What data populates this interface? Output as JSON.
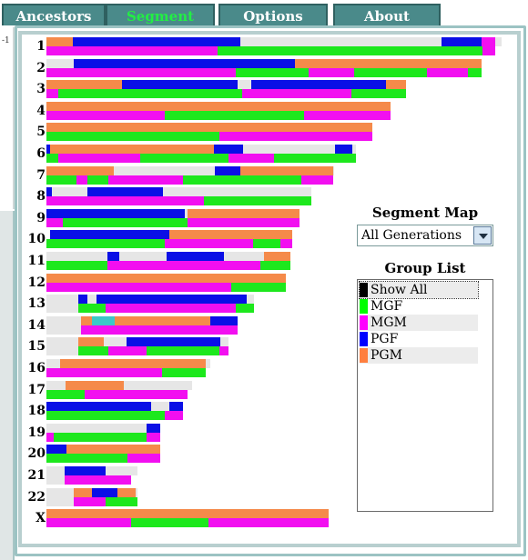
{
  "tabs": [
    {
      "label": "Ancestors"
    },
    {
      "label": "Segment Map"
    },
    {
      "label": "Options"
    },
    {
      "label": "About"
    }
  ],
  "left_strip_text": "-1",
  "chromosomes": [
    {
      "label": "1",
      "paternal": [
        [
          "gray",
          0.0,
          1.0
        ],
        [
          "orange",
          0.0,
          0.057
        ],
        [
          "blue",
          0.057,
          0.425
        ],
        [
          "blue",
          0.867,
          0.956
        ],
        [
          "magenta",
          0.956,
          0.985
        ]
      ],
      "maternal": [
        [
          "magenta",
          0.0,
          0.375
        ],
        [
          "green",
          0.375,
          0.958
        ],
        [
          "magenta",
          0.958,
          0.985
        ]
      ]
    },
    {
      "label": "2",
      "paternal": [
        [
          "gray",
          0.0,
          0.06
        ],
        [
          "blue",
          0.06,
          0.545
        ],
        [
          "orange",
          0.545,
          0.955
        ]
      ],
      "maternal": [
        [
          "magenta",
          0.0,
          0.415
        ],
        [
          "green",
          0.415,
          0.575
        ],
        [
          "magenta",
          0.575,
          0.675
        ],
        [
          "green",
          0.675,
          0.835
        ],
        [
          "magenta",
          0.835,
          0.925
        ],
        [
          "green",
          0.925,
          0.955
        ]
      ]
    },
    {
      "label": "3",
      "paternal": [
        [
          "orange",
          0.0,
          0.165
        ],
        [
          "blue",
          0.165,
          0.42
        ],
        [
          "gray",
          0.42,
          0.45
        ],
        [
          "blue",
          0.45,
          0.746
        ],
        [
          "orange",
          0.746,
          0.79
        ]
      ],
      "maternal": [
        [
          "magenta",
          0.0,
          0.025
        ],
        [
          "green",
          0.025,
          0.43
        ],
        [
          "magenta",
          0.43,
          0.67
        ],
        [
          "green",
          0.67,
          0.79
        ]
      ]
    },
    {
      "label": "4",
      "paternal": [
        [
          "orange",
          0.0,
          0.755
        ]
      ],
      "maternal": [
        [
          "magenta",
          0.0,
          0.26
        ],
        [
          "green",
          0.26,
          0.565
        ],
        [
          "magenta",
          0.565,
          0.755
        ]
      ]
    },
    {
      "label": "5",
      "paternal": [
        [
          "orange",
          0.0,
          0.715
        ]
      ],
      "maternal": [
        [
          "green",
          0.0,
          0.38
        ],
        [
          "magenta",
          0.38,
          0.715
        ]
      ]
    },
    {
      "label": "6",
      "paternal": [
        [
          "blue",
          0.0,
          0.008
        ],
        [
          "orange",
          0.008,
          0.367
        ],
        [
          "blue",
          0.367,
          0.432
        ],
        [
          "gray",
          0.432,
          0.633
        ],
        [
          "blue",
          0.633,
          0.672
        ],
        [
          "gray",
          0.672,
          0.68
        ]
      ],
      "maternal": [
        [
          "green",
          0.0,
          0.025
        ],
        [
          "magenta",
          0.025,
          0.205
        ],
        [
          "green",
          0.205,
          0.4
        ],
        [
          "magenta",
          0.4,
          0.5
        ],
        [
          "green",
          0.5,
          0.68
        ]
      ]
    },
    {
      "label": "7",
      "paternal": [
        [
          "orange",
          0.0,
          0.148
        ],
        [
          "gray",
          0.148,
          0.37
        ],
        [
          "blue",
          0.37,
          0.426
        ],
        [
          "orange",
          0.426,
          0.63
        ],
        [
          "gray",
          0.63,
          0.63
        ]
      ],
      "maternal": [
        [
          "green",
          0.0,
          0.065
        ],
        [
          "magenta",
          0.065,
          0.09
        ],
        [
          "green",
          0.09,
          0.135
        ],
        [
          "magenta",
          0.135,
          0.3
        ],
        [
          "green",
          0.3,
          0.56
        ],
        [
          "magenta",
          0.56,
          0.63
        ]
      ]
    },
    {
      "label": "8",
      "paternal": [
        [
          "blue",
          0.0,
          0.012
        ],
        [
          "gray",
          0.012,
          0.09
        ],
        [
          "blue",
          0.09,
          0.256
        ],
        [
          "gray",
          0.256,
          0.582
        ]
      ],
      "maternal": [
        [
          "magenta",
          0.0,
          0.345
        ],
        [
          "green",
          0.345,
          0.582
        ]
      ]
    },
    {
      "label": "9",
      "paternal": [
        [
          "blue",
          0.0,
          0.304
        ],
        [
          "gray",
          0.304,
          0.31
        ],
        [
          "orange",
          0.31,
          0.555
        ]
      ],
      "maternal": [
        [
          "magenta",
          0.0,
          0.035
        ],
        [
          "green",
          0.035,
          0.31
        ],
        [
          "magenta",
          0.31,
          0.555
        ]
      ]
    },
    {
      "label": "10",
      "paternal": [
        [
          "blue",
          0.008,
          0.27
        ],
        [
          "orange",
          0.27,
          0.54
        ]
      ],
      "maternal": [
        [
          "green",
          0.0,
          0.26
        ],
        [
          "magenta",
          0.26,
          0.454
        ],
        [
          "green",
          0.454,
          0.514
        ],
        [
          "magenta",
          0.514,
          0.54
        ]
      ]
    },
    {
      "label": "11",
      "paternal": [
        [
          "gray",
          0.0,
          0.134
        ],
        [
          "blue",
          0.134,
          0.159
        ],
        [
          "gray",
          0.159,
          0.263
        ],
        [
          "blue",
          0.263,
          0.39
        ],
        [
          "gray",
          0.39,
          0.478
        ],
        [
          "orange",
          0.478,
          0.535
        ]
      ],
      "maternal": [
        [
          "green",
          0.0,
          0.134
        ],
        [
          "magenta",
          0.134,
          0.47
        ],
        [
          "green",
          0.47,
          0.535
        ]
      ]
    },
    {
      "label": "12",
      "paternal": [
        [
          "orange",
          0.0,
          0.525
        ]
      ],
      "maternal": [
        [
          "magenta",
          0.0,
          0.405
        ],
        [
          "green",
          0.405,
          0.525
        ]
      ]
    },
    {
      "label": "13",
      "paternal": [
        [
          "gray",
          0.0,
          0.07
        ],
        [
          "blue",
          0.07,
          0.09
        ],
        [
          "gray",
          0.09,
          0.11
        ],
        [
          "blue",
          0.11,
          0.44
        ],
        [
          "gray",
          0.44,
          0.455
        ]
      ],
      "maternal": [
        [
          "gray",
          0.0,
          0.07
        ],
        [
          "green",
          0.07,
          0.13
        ],
        [
          "magenta",
          0.13,
          0.415
        ],
        [
          "green",
          0.415,
          0.455
        ]
      ]
    },
    {
      "label": "14",
      "paternal": [
        [
          "gray",
          0.0,
          0.075
        ],
        [
          "orange",
          0.075,
          0.1
        ],
        [
          "cyan",
          0.1,
          0.15
        ],
        [
          "orange",
          0.15,
          0.36
        ],
        [
          "blue",
          0.36,
          0.42
        ]
      ],
      "maternal": [
        [
          "gray",
          0.0,
          0.075
        ],
        [
          "magenta",
          0.075,
          0.42
        ]
      ]
    },
    {
      "label": "15",
      "paternal": [
        [
          "gray",
          0.0,
          0.07
        ],
        [
          "orange",
          0.07,
          0.125
        ],
        [
          "gray",
          0.125,
          0.175
        ],
        [
          "blue",
          0.175,
          0.382
        ],
        [
          "gray",
          0.382,
          0.4
        ]
      ],
      "maternal": [
        [
          "gray",
          0.0,
          0.07
        ],
        [
          "green",
          0.07,
          0.135
        ],
        [
          "magenta",
          0.135,
          0.22
        ],
        [
          "green",
          0.22,
          0.38
        ],
        [
          "magenta",
          0.38,
          0.4
        ]
      ]
    },
    {
      "label": "16",
      "paternal": [
        [
          "gray",
          0.0,
          0.03
        ],
        [
          "orange",
          0.03,
          0.35
        ],
        [
          "gray",
          0.35,
          0.36
        ]
      ],
      "maternal": [
        [
          "magenta",
          0.0,
          0.253
        ],
        [
          "green",
          0.253,
          0.35
        ]
      ]
    },
    {
      "label": "17",
      "paternal": [
        [
          "gray",
          0.0,
          0.042
        ],
        [
          "orange",
          0.042,
          0.17
        ],
        [
          "gray",
          0.17,
          0.32
        ]
      ],
      "maternal": [
        [
          "green",
          0.0,
          0.083
        ],
        [
          "magenta",
          0.083,
          0.31
        ]
      ]
    },
    {
      "label": "18",
      "paternal": [
        [
          "blue",
          0.0,
          0.23
        ],
        [
          "gray",
          0.23,
          0.27
        ],
        [
          "blue",
          0.27,
          0.3
        ]
      ],
      "maternal": [
        [
          "green",
          0.0,
          0.26
        ],
        [
          "magenta",
          0.26,
          0.3
        ]
      ]
    },
    {
      "label": "19",
      "paternal": [
        [
          "gray",
          0.0,
          0.22
        ],
        [
          "blue",
          0.22,
          0.25
        ]
      ],
      "maternal": [
        [
          "magenta",
          0.0,
          0.015
        ],
        [
          "green",
          0.015,
          0.22
        ],
        [
          "magenta",
          0.22,
          0.25
        ]
      ]
    },
    {
      "label": "20",
      "paternal": [
        [
          "blue",
          0.0,
          0.044
        ],
        [
          "orange",
          0.044,
          0.25
        ]
      ],
      "maternal": [
        [
          "green",
          0.0,
          0.178
        ],
        [
          "magenta",
          0.178,
          0.25
        ]
      ]
    },
    {
      "label": "21",
      "paternal": [
        [
          "gray",
          0.0,
          0.04
        ],
        [
          "blue",
          0.04,
          0.13
        ],
        [
          "gray",
          0.13,
          0.2
        ]
      ],
      "maternal": [
        [
          "gray",
          0.0,
          0.04
        ],
        [
          "magenta",
          0.04,
          0.186
        ]
      ]
    },
    {
      "label": "22",
      "paternal": [
        [
          "gray",
          0.0,
          0.06
        ],
        [
          "orange",
          0.06,
          0.1
        ],
        [
          "blue",
          0.1,
          0.155
        ],
        [
          "orange",
          0.155,
          0.196
        ],
        [
          "gray",
          0.196,
          0.2
        ]
      ],
      "maternal": [
        [
          "gray",
          0.0,
          0.06
        ],
        [
          "magenta",
          0.06,
          0.13
        ],
        [
          "green",
          0.13,
          0.2
        ]
      ]
    },
    {
      "label": "X",
      "paternal": [
        [
          "orange",
          0.0,
          0.62
        ]
      ],
      "maternal": [
        [
          "magenta",
          0.0,
          0.185
        ],
        [
          "green",
          0.185,
          0.355
        ],
        [
          "magenta",
          0.355,
          0.62
        ]
      ]
    }
  ],
  "segment_map": {
    "title": "Segment Map",
    "selected": "All Generations"
  },
  "group_list": {
    "title": "Group List",
    "items": [
      {
        "label": "Show All",
        "color": "#000000"
      },
      {
        "label": "MGF",
        "color": "#00ff00"
      },
      {
        "label": "MGM",
        "color": "#ff00ff"
      },
      {
        "label": "PGF",
        "color": "#0000ff"
      },
      {
        "label": "PGM",
        "color": "#ff7f3f"
      }
    ]
  },
  "colors": {
    "orange": "#f58a4a",
    "blue": "#0a0fe6",
    "magenta": "#f20ff0",
    "green": "#1de81d",
    "gray": "#e6e6e6",
    "cyan": "#3cc8c8"
  }
}
